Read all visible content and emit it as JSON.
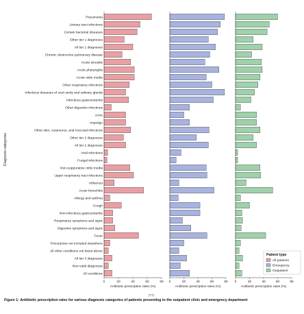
{
  "chart_data": {
    "type": "bar",
    "orientation": "horizontal",
    "categories": [
      "Pneumonia",
      "Urinary tract infections",
      "Certain bacterial diseases",
      "Other tier 1 diagnoses",
      "All tier 1 diagnoses",
      "Chronic obstructive pulmonary disease",
      "Acute sinusitis",
      "Acute pharyngitis",
      "Acute otitis media",
      "Other respiratory infections",
      "Infectious diseases of oral cavity and salivary glands",
      "Infectious gastroenteritis",
      "Other digestive infections",
      "Acne",
      "Impetigo",
      "Other skin, cutaneous, and mucosal infections",
      "Other tier 2 diagnoses",
      "All tier 2 diagnoses",
      "Viral infections",
      "Fungal infections",
      "Non-suppurative otitis media",
      "Upper respiratory tract infections",
      "Influenza",
      "Acute bronchitis",
      "Allergy and asthma",
      "Cough",
      "Non-infectious gastroenteritis",
      "Respiratory symptoms and signs",
      "Digestive symptoms and signs",
      "Fever",
      "Procedures not included elsewhere",
      "All other conditions not listed above",
      "All tier 3 diagnoses",
      "Non-valid diagnoses",
      "All conditions"
    ],
    "series": [
      {
        "name": "All patients",
        "color": "#e8a0a4",
        "values": [
          66,
          50,
          46,
          28,
          40,
          25,
          37,
          42,
          42,
          35,
          30,
          34,
          10,
          30,
          30,
          37,
          27,
          30,
          5,
          4,
          36,
          41,
          14,
          55,
          8,
          24,
          12,
          12,
          15,
          48,
          8,
          6,
          11,
          6,
          11
        ]
      },
      {
        "name": "Emergency",
        "color": "#a8b3de",
        "values": [
          78,
          72,
          68,
          55,
          65,
          57,
          50,
          70,
          52,
          60,
          78,
          62,
          28,
          20,
          28,
          56,
          38,
          55,
          16,
          9,
          52,
          53,
          13,
          63,
          12,
          43,
          43,
          18,
          30,
          53,
          20,
          13,
          24,
          15,
          28
        ]
      },
      {
        "name": "Outpatient",
        "color": "#9fd1ab",
        "values": [
          60,
          48,
          45,
          25,
          38,
          23,
          37,
          38,
          35,
          32,
          27,
          22,
          7,
          30,
          30,
          35,
          25,
          30,
          3,
          3,
          35,
          36,
          15,
          53,
          7,
          20,
          9,
          10,
          8,
          43,
          7,
          5,
          10,
          5,
          9
        ]
      }
    ],
    "xlabel": "Antibiotic prescription rates (%)",
    "ylabel": "Diagnosis categories",
    "xlim": [
      0,
      80
    ],
    "xticks": [
      "0",
      "20",
      "40",
      "60",
      "80"
    ],
    "legend": {
      "title": "Patient type",
      "placement": "bottom-right",
      "entries": [
        "All patients",
        "Emergency",
        "Outpatient"
      ]
    },
    "grid": false,
    "axis_break_mark": "(77)"
  },
  "caption": {
    "label": "Figure 1:",
    "text": "Antibiotic prescription rates for various diagnosis categories of patients presenting to the outpatient clinic and emergency department"
  }
}
